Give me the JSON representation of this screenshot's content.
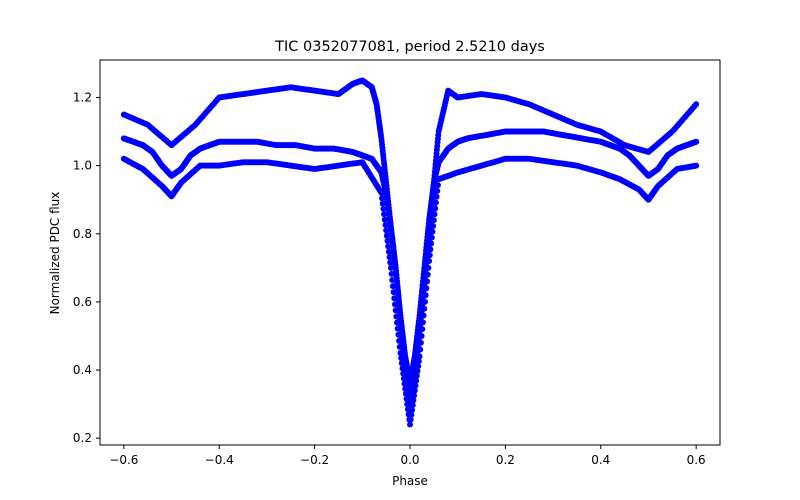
{
  "chart_data": {
    "type": "scatter",
    "title": "TIC 0352077081, period 2.5210 days",
    "xlabel": "Phase",
    "ylabel": "Normalized PDC flux",
    "xlim": [
      -0.65,
      0.65
    ],
    "ylim": [
      0.18,
      1.31
    ],
    "xticks": [
      -0.6,
      -0.4,
      -0.2,
      0.0,
      0.2,
      0.4,
      0.6
    ],
    "xtick_labels": [
      "−0.6",
      "−0.4",
      "−0.2",
      "0.0",
      "0.2",
      "0.4",
      "0.6"
    ],
    "yticks": [
      0.2,
      0.4,
      0.6,
      0.8,
      1.0,
      1.2
    ],
    "ytick_labels": [
      "0.2",
      "0.4",
      "0.6",
      "0.8",
      "1.0",
      "1.2"
    ],
    "grid": false,
    "legend": "none",
    "marker_color": "#0000ff",
    "series": [
      {
        "x": [
          -0.6,
          -0.58,
          -0.56,
          -0.54,
          -0.52,
          -0.5,
          -0.48,
          -0.46,
          -0.44,
          -0.42,
          -0.4,
          -0.36,
          -0.32,
          -0.28,
          -0.24,
          -0.2,
          -0.16,
          -0.12,
          -0.1,
          -0.08,
          -0.06,
          -0.05,
          -0.04,
          -0.03,
          -0.02,
          -0.01,
          0.0,
          0.01,
          0.02,
          0.03,
          0.04,
          0.05,
          0.06,
          0.08,
          0.1,
          0.12,
          0.16,
          0.2,
          0.24,
          0.28,
          0.32,
          0.36,
          0.4,
          0.42,
          0.44,
          0.46,
          0.48,
          0.5,
          0.52,
          0.54,
          0.56,
          0.58,
          0.6
        ],
        "y": [
          1.08,
          1.07,
          1.06,
          1.04,
          1.0,
          0.97,
          0.99,
          1.03,
          1.05,
          1.06,
          1.07,
          1.07,
          1.07,
          1.06,
          1.06,
          1.05,
          1.05,
          1.04,
          1.03,
          1.02,
          0.98,
          0.92,
          0.82,
          0.7,
          0.56,
          0.44,
          0.36,
          0.44,
          0.56,
          0.7,
          0.84,
          0.95,
          1.01,
          1.05,
          1.07,
          1.08,
          1.09,
          1.1,
          1.1,
          1.1,
          1.09,
          1.08,
          1.07,
          1.06,
          1.05,
          1.03,
          1.0,
          0.97,
          0.99,
          1.03,
          1.05,
          1.06,
          1.07
        ]
      },
      {
        "x": [
          -0.6,
          -0.55,
          -0.5,
          -0.45,
          -0.4,
          -0.35,
          -0.3,
          -0.25,
          -0.2,
          -0.15,
          -0.12,
          -0.1,
          -0.08,
          -0.07,
          -0.06,
          -0.05,
          -0.04,
          -0.03,
          -0.02,
          -0.01,
          0.0,
          0.01,
          0.02,
          0.03,
          0.04,
          0.05,
          0.06,
          0.08,
          0.1,
          0.15,
          0.2,
          0.25,
          0.3,
          0.35,
          0.4,
          0.45,
          0.5,
          0.55,
          0.6
        ],
        "y": [
          1.15,
          1.12,
          1.06,
          1.12,
          1.2,
          1.21,
          1.22,
          1.23,
          1.22,
          1.21,
          1.24,
          1.25,
          1.23,
          1.18,
          1.08,
          0.95,
          0.82,
          0.7,
          0.55,
          0.4,
          0.3,
          0.38,
          0.52,
          0.66,
          0.8,
          0.95,
          1.1,
          1.22,
          1.2,
          1.21,
          1.2,
          1.18,
          1.15,
          1.12,
          1.1,
          1.06,
          1.04,
          1.1,
          1.18
        ]
      },
      {
        "x": [
          -0.6,
          -0.56,
          -0.52,
          -0.5,
          -0.48,
          -0.44,
          -0.4,
          -0.35,
          -0.3,
          -0.25,
          -0.2,
          -0.15,
          -0.1,
          -0.06,
          -0.04,
          -0.02,
          0.0,
          0.02,
          0.04,
          0.06,
          0.1,
          0.15,
          0.2,
          0.25,
          0.3,
          0.35,
          0.4,
          0.44,
          0.48,
          0.5,
          0.52,
          0.56,
          0.6
        ],
        "y": [
          1.02,
          0.99,
          0.94,
          0.91,
          0.95,
          1.0,
          1.0,
          1.01,
          1.01,
          1.0,
          0.99,
          1.0,
          1.01,
          0.92,
          0.7,
          0.45,
          0.24,
          0.44,
          0.72,
          0.96,
          0.98,
          1.0,
          1.02,
          1.02,
          1.01,
          1.0,
          0.98,
          0.96,
          0.93,
          0.9,
          0.94,
          0.99,
          1.0
        ]
      }
    ]
  }
}
